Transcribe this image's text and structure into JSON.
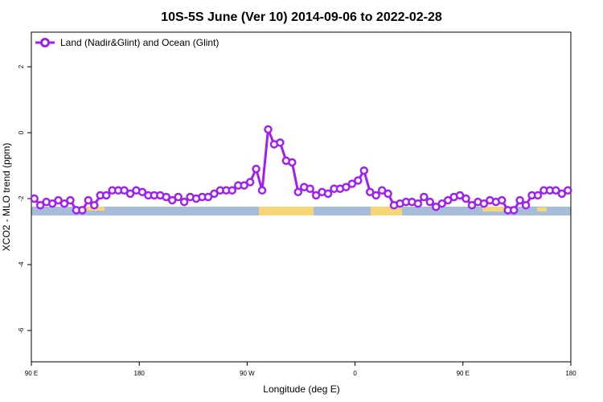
{
  "chart_data": {
    "type": "line",
    "title": "10S-5S June (Ver 10)   2014-09-06 to 2022-02-28",
    "xlabel": "Longitude (deg E)",
    "ylabel": "XCO2 - MLO trend (ppm)",
    "xlim": [
      90,
      540
    ],
    "ylim": [
      -6.95,
      3.05
    ],
    "xticks": [
      {
        "value": 90,
        "label": "90 E"
      },
      180,
      {
        "value": 270,
        "label": "90 W"
      },
      {
        "value": 360,
        "label": "0"
      },
      {
        "value": 450,
        "label": "90 E"
      },
      {
        "value": 540,
        "label": "180"
      }
    ],
    "yticks": [
      2,
      0,
      -2,
      -4,
      -6
    ],
    "legend": "top-left",
    "x": [
      92.5,
      97.5,
      102.5,
      107.5,
      112.5,
      117.5,
      122.5,
      127.5,
      132.5,
      137.5,
      142.5,
      147.5,
      152.5,
      157.5,
      162.5,
      167.5,
      172.5,
      177.5,
      182.5,
      187.5,
      192.5,
      197.5,
      202.5,
      207.5,
      212.5,
      217.5,
      222.5,
      227.5,
      232.5,
      237.5,
      242.5,
      247.5,
      252.5,
      257.5,
      262.5,
      267.5,
      272.5,
      277.5,
      282.5,
      287.5,
      292.5,
      297.5,
      302.5,
      307.5,
      312.5,
      317.5,
      322.5,
      327.5,
      332.5,
      337.5,
      342.5,
      347.5,
      352.5,
      357.5,
      362.5,
      367.5,
      372.5,
      377.5,
      382.5,
      387.5,
      392.5,
      397.5,
      402.5,
      407.5,
      412.5,
      417.5,
      422.5,
      427.5,
      432.5,
      437.5,
      442.5,
      447.5,
      452.5,
      457.5,
      462.5,
      467.5,
      472.5,
      477.5,
      482.5,
      487.5,
      492.5,
      497.5,
      502.5,
      507.5,
      512.5,
      517.5,
      522.5,
      527.5,
      532.5,
      537.5
    ],
    "series": [
      {
        "name": "Land (Nadir&Glint) and Ocean (Glint)",
        "color": "#a020f0",
        "values": [
          -2.0,
          -2.2,
          -2.1,
          -2.15,
          -2.05,
          -2.15,
          -2.05,
          -2.35,
          -2.35,
          -2.05,
          -2.2,
          -1.9,
          -1.9,
          -1.75,
          -1.75,
          -1.75,
          -1.85,
          -1.75,
          -1.8,
          -1.9,
          -1.9,
          -1.9,
          -1.95,
          -2.05,
          -1.95,
          -2.1,
          -1.95,
          -2.0,
          -1.95,
          -1.95,
          -1.85,
          -1.75,
          -1.75,
          -1.75,
          -1.6,
          -1.6,
          -1.5,
          -1.1,
          -1.75,
          0.1,
          -0.35,
          -0.3,
          -0.85,
          -0.9,
          -1.8,
          -1.65,
          -1.7,
          -1.9,
          -1.8,
          -1.85,
          -1.7,
          -1.7,
          -1.65,
          -1.55,
          -1.45,
          -1.15,
          -1.8,
          -1.9,
          -1.75,
          -1.85,
          -2.2,
          -2.15,
          -2.1,
          -2.1,
          -2.15,
          -1.95,
          -2.1,
          -2.25,
          -2.15,
          -2.05,
          -1.95,
          -1.9,
          -2.0,
          -2.2,
          -2.1,
          -2.15,
          -2.05,
          -2.1,
          -2.05,
          -2.35,
          -2.35,
          -2.05,
          -2.2,
          -1.9,
          -1.9,
          -1.75,
          -1.75,
          -1.75,
          -1.85,
          -1.75
        ]
      }
    ]
  }
}
